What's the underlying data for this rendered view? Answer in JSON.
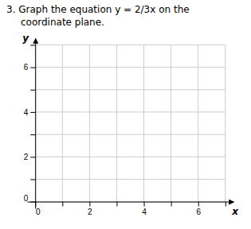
{
  "chart_data": {
    "type": "coordinate_plane",
    "title": "3. Graph the equation y = 2/3x on the",
    "subtitle": "coordinate plane.",
    "x_label": "x",
    "y_label": "y",
    "xlim": [
      -0.3,
      7.3
    ],
    "ylim": [
      -0.3,
      7.3
    ],
    "xticks": [
      0,
      {
        "value": 1,
        "label": null
      },
      2,
      {
        "value": 3,
        "label": null
      },
      4,
      {
        "value": 5,
        "label": null
      },
      6,
      {
        "value": 7,
        "label": null
      }
    ],
    "yticks": [
      0,
      {
        "value": 1,
        "label": null
      },
      2,
      {
        "value": 3,
        "label": null
      },
      4,
      {
        "value": 5,
        "label": null
      },
      6,
      {
        "value": 7,
        "label": null
      }
    ],
    "grid": true
  }
}
